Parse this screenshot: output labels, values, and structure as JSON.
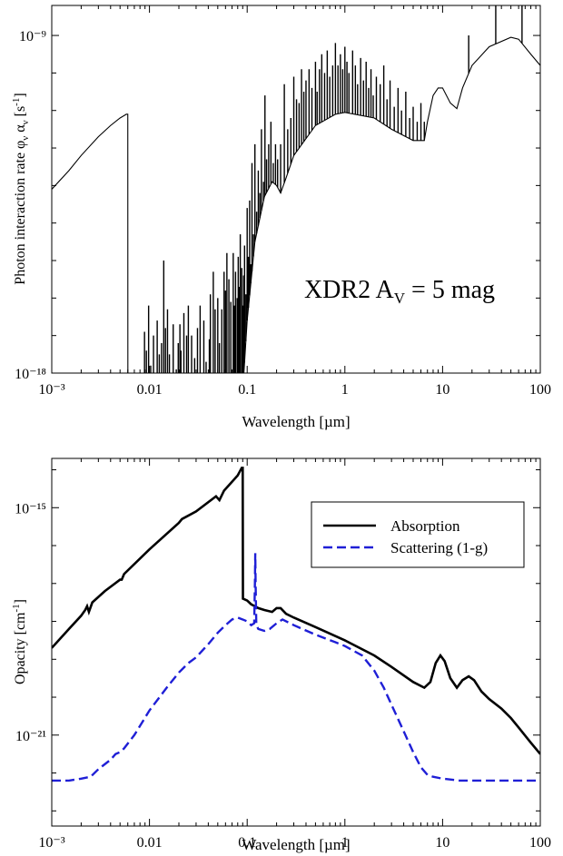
{
  "chart_data": [
    {
      "type": "line",
      "xscale": "log",
      "yscale": "log",
      "xlim": [
        0.001,
        100
      ],
      "ylim_exp": [
        -18,
        -8.2
      ],
      "xlabel": "Wavelength [µm]",
      "ylabel": "Photon interaction rate φν αν [s⁻¹]",
      "annotation": "XDR2 Aᵥ = 5 mag",
      "x_ticks": [
        "10⁻³",
        "0.01",
        "0.1",
        "1",
        "10",
        "100"
      ],
      "y_ticks": [
        "10⁻¹⁸",
        "10⁻⁹"
      ],
      "series": [
        {
          "color": "#000000",
          "continuum": [
            [
              0.001,
              -13.1
            ],
            [
              0.0015,
              -12.6
            ],
            [
              0.002,
              -12.2
            ],
            [
              0.003,
              -11.7
            ],
            [
              0.004,
              -11.4
            ],
            [
              0.005,
              -11.2
            ],
            [
              0.0058,
              -11.1
            ],
            [
              0.006,
              -11.1
            ],
            [
              0.00601,
              -18.5
            ],
            [
              0.09,
              -18.5
            ],
            [
              0.1,
              -16.6
            ],
            [
              0.12,
              -14.5
            ],
            [
              0.15,
              -13.3
            ],
            [
              0.18,
              -12.9
            ],
            [
              0.2,
              -13.0
            ],
            [
              0.22,
              -13.2
            ],
            [
              0.25,
              -12.8
            ],
            [
              0.3,
              -12.2
            ],
            [
              0.5,
              -11.4
            ],
            [
              0.8,
              -11.1
            ],
            [
              1,
              -11.05
            ],
            [
              2,
              -11.2
            ],
            [
              3,
              -11.5
            ],
            [
              5,
              -11.8
            ],
            [
              6.5,
              -11.8
            ],
            [
              7,
              -11.3
            ],
            [
              8,
              -10.6
            ],
            [
              9,
              -10.4
            ],
            [
              10,
              -10.4
            ],
            [
              12,
              -10.8
            ],
            [
              14,
              -10.95
            ],
            [
              16,
              -10.4
            ],
            [
              20,
              -9.8
            ],
            [
              30,
              -9.3
            ],
            [
              50,
              -9.05
            ],
            [
              60,
              -9.1
            ],
            [
              80,
              -9.5
            ],
            [
              100,
              -9.8
            ]
          ],
          "lines": [
            [
              0.0089,
              -16.9
            ],
            [
              0.0093,
              -17.4
            ],
            [
              0.0098,
              -16.2
            ],
            [
              0.0103,
              -17.8
            ],
            [
              0.011,
              -17.0
            ],
            [
              0.012,
              -16.6
            ],
            [
              0.0126,
              -17.5
            ],
            [
              0.0133,
              -17.2
            ],
            [
              0.014,
              -15.0
            ],
            [
              0.0146,
              -16.8
            ],
            [
              0.0153,
              -16.3
            ],
            [
              0.016,
              -17.5
            ],
            [
              0.0175,
              -16.7
            ],
            [
              0.0188,
              -17.9
            ],
            [
              0.0197,
              -17.2
            ],
            [
              0.0205,
              -16.7
            ],
            [
              0.021,
              -17.4
            ],
            [
              0.0225,
              -16.4
            ],
            [
              0.024,
              -17.0
            ],
            [
              0.025,
              -16.2
            ],
            [
              0.027,
              -17.0
            ],
            [
              0.029,
              -17.6
            ],
            [
              0.031,
              -16.8
            ],
            [
              0.033,
              -16.2
            ],
            [
              0.036,
              -16.6
            ],
            [
              0.038,
              -17.7
            ],
            [
              0.041,
              -17.1
            ],
            [
              0.042,
              -15.9
            ],
            [
              0.045,
              -15.3
            ],
            [
              0.047,
              -16.3
            ],
            [
              0.05,
              -16.0
            ],
            [
              0.052,
              -17.2
            ],
            [
              0.055,
              -16.3
            ],
            [
              0.058,
              -15.3
            ],
            [
              0.06,
              -15.8
            ],
            [
              0.062,
              -14.8
            ],
            [
              0.065,
              -15.5
            ],
            [
              0.068,
              -16.1
            ],
            [
              0.072,
              -14.8
            ],
            [
              0.074,
              -16.2
            ],
            [
              0.076,
              -15.3
            ],
            [
              0.079,
              -16.0
            ],
            [
              0.081,
              -14.9
            ],
            [
              0.083,
              -15.7
            ],
            [
              0.085,
              -14.3
            ],
            [
              0.088,
              -15.2
            ],
            [
              0.09,
              -16.2
            ],
            [
              0.092,
              -15.4
            ],
            [
              0.094,
              -14.6
            ],
            [
              0.097,
              -15.9
            ],
            [
              0.1,
              -13.6
            ],
            [
              0.103,
              -14.9
            ],
            [
              0.106,
              -13.4
            ],
            [
              0.109,
              -15.1
            ],
            [
              0.112,
              -12.4
            ],
            [
              0.116,
              -14.3
            ],
            [
              0.12,
              -11.9
            ],
            [
              0.125,
              -13.7
            ],
            [
              0.13,
              -12.6
            ],
            [
              0.135,
              -13.2
            ],
            [
              0.14,
              -11.5
            ],
            [
              0.147,
              -12.9
            ],
            [
              0.152,
              -10.6
            ],
            [
              0.158,
              -12.3
            ],
            [
              0.166,
              -11.9
            ],
            [
              0.175,
              -11.3
            ],
            [
              0.185,
              -12.4
            ],
            [
              0.195,
              -11.9
            ],
            [
              0.205,
              -12.3
            ],
            [
              0.22,
              -11.9
            ],
            [
              0.24,
              -10.3
            ],
            [
              0.26,
              -11.5
            ],
            [
              0.28,
              -11.2
            ],
            [
              0.3,
              -10.1
            ],
            [
              0.32,
              -10.7
            ],
            [
              0.34,
              -10.8
            ],
            [
              0.36,
              -9.9
            ],
            [
              0.38,
              -10.5
            ],
            [
              0.4,
              -10.2
            ],
            [
              0.43,
              -9.9
            ],
            [
              0.46,
              -10.4
            ],
            [
              0.5,
              -9.7
            ],
            [
              0.52,
              -10.5
            ],
            [
              0.55,
              -9.9
            ],
            [
              0.58,
              -9.5
            ],
            [
              0.62,
              -10.0
            ],
            [
              0.66,
              -9.4
            ],
            [
              0.7,
              -10.1
            ],
            [
              0.75,
              -9.8
            ],
            [
              0.8,
              -9.2
            ],
            [
              0.85,
              -9.8
            ],
            [
              0.9,
              -9.5
            ],
            [
              0.95,
              -9.9
            ],
            [
              1.0,
              -9.3
            ],
            [
              1.05,
              -9.7
            ],
            [
              1.1,
              -10.0
            ],
            [
              1.2,
              -9.4
            ],
            [
              1.28,
              -9.8
            ],
            [
              1.35,
              -10.3
            ],
            [
              1.45,
              -9.6
            ],
            [
              1.55,
              -10.2
            ],
            [
              1.65,
              -9.7
            ],
            [
              1.75,
              -10.4
            ],
            [
              1.85,
              -9.9
            ],
            [
              1.95,
              -10.6
            ],
            [
              2.1,
              -10.1
            ],
            [
              2.3,
              -10.3
            ],
            [
              2.5,
              -9.8
            ],
            [
              2.7,
              -10.7
            ],
            [
              2.9,
              -10.2
            ],
            [
              3.2,
              -10.9
            ],
            [
              3.5,
              -10.4
            ],
            [
              3.8,
              -11.0
            ],
            [
              4.2,
              -10.5
            ],
            [
              4.6,
              -11.2
            ],
            [
              5.0,
              -10.9
            ],
            [
              5.5,
              -11.3
            ],
            [
              6.0,
              -10.8
            ],
            [
              6.5,
              -11.3
            ],
            [
              18.5,
              -9.0
            ],
            [
              35,
              -8.2
            ],
            [
              65,
              -8.2
            ]
          ]
        }
      ]
    },
    {
      "type": "line",
      "xscale": "log",
      "yscale": "log",
      "xlim": [
        0.001,
        100
      ],
      "ylim_exp": [
        -23.4,
        -13.7
      ],
      "xlabel": "Wavelength [µm]",
      "ylabel": "Opacity [cm⁻¹]",
      "legend_position": "upper right",
      "x_ticks": [
        "10⁻³",
        "0.01",
        "0.1",
        "1",
        "10",
        "100"
      ],
      "y_ticks": [
        "10⁻¹⁵",
        "10⁻²¹"
      ],
      "series": [
        {
          "name": "Absorption",
          "color": "#000000",
          "dash": "solid",
          "points": [
            [
              0.001,
              -18.7
            ],
            [
              0.0015,
              -18.2
            ],
            [
              0.002,
              -17.85
            ],
            [
              0.0022,
              -17.7
            ],
            [
              0.0023,
              -17.6
            ],
            [
              0.0024,
              -17.75
            ],
            [
              0.0026,
              -17.5
            ],
            [
              0.0035,
              -17.2
            ],
            [
              0.005,
              -16.9
            ],
            [
              0.0052,
              -16.9
            ],
            [
              0.0055,
              -16.75
            ],
            [
              0.01,
              -16.1
            ],
            [
              0.02,
              -15.4
            ],
            [
              0.0215,
              -15.3
            ],
            [
              0.03,
              -15.1
            ],
            [
              0.048,
              -14.7
            ],
            [
              0.052,
              -14.8
            ],
            [
              0.058,
              -14.55
            ],
            [
              0.08,
              -14.15
            ],
            [
              0.088,
              -13.95
            ],
            [
              0.09,
              -13.95
            ],
            [
              0.0905,
              -17.4
            ],
            [
              0.1,
              -17.45
            ],
            [
              0.11,
              -17.55
            ],
            [
              0.12,
              -17.6
            ],
            [
              0.13,
              -17.65
            ],
            [
              0.15,
              -17.7
            ],
            [
              0.18,
              -17.75
            ],
            [
              0.2,
              -17.65
            ],
            [
              0.22,
              -17.65
            ],
            [
              0.25,
              -17.8
            ],
            [
              0.3,
              -17.9
            ],
            [
              0.5,
              -18.15
            ],
            [
              1,
              -18.5
            ],
            [
              2,
              -18.9
            ],
            [
              3,
              -19.2
            ],
            [
              5,
              -19.6
            ],
            [
              6.5,
              -19.75
            ],
            [
              7.5,
              -19.6
            ],
            [
              8.5,
              -19.1
            ],
            [
              9.5,
              -18.9
            ],
            [
              10.5,
              -19.05
            ],
            [
              12,
              -19.5
            ],
            [
              14,
              -19.75
            ],
            [
              16,
              -19.55
            ],
            [
              18.5,
              -19.45
            ],
            [
              21,
              -19.55
            ],
            [
              25,
              -19.85
            ],
            [
              30,
              -20.05
            ],
            [
              40,
              -20.3
            ],
            [
              50,
              -20.55
            ],
            [
              60,
              -20.8
            ],
            [
              80,
              -21.2
            ],
            [
              100,
              -21.5
            ]
          ]
        },
        {
          "name": "Scattering (1-g)",
          "color": "#1f1fd6",
          "dash": "dashed",
          "points": [
            [
              0.001,
              -22.2
            ],
            [
              0.0015,
              -22.2
            ],
            [
              0.002,
              -22.15
            ],
            [
              0.0025,
              -22.1
            ],
            [
              0.003,
              -21.9
            ],
            [
              0.004,
              -21.65
            ],
            [
              0.0045,
              -21.5
            ],
            [
              0.005,
              -21.45
            ],
            [
              0.0055,
              -21.35
            ],
            [
              0.007,
              -21.0
            ],
            [
              0.01,
              -20.35
            ],
            [
              0.015,
              -19.75
            ],
            [
              0.02,
              -19.35
            ],
            [
              0.025,
              -19.1
            ],
            [
              0.03,
              -18.95
            ],
            [
              0.04,
              -18.6
            ],
            [
              0.05,
              -18.3
            ],
            [
              0.06,
              -18.1
            ],
            [
              0.07,
              -17.95
            ],
            [
              0.08,
              -17.9
            ],
            [
              0.09,
              -17.95
            ],
            [
              0.1,
              -18.0
            ],
            [
              0.11,
              -18.1
            ],
            [
              0.118,
              -18.05
            ],
            [
              0.12,
              -17.0
            ],
            [
              0.121,
              -16.2
            ],
            [
              0.122,
              -17.0
            ],
            [
              0.124,
              -18.1
            ],
            [
              0.13,
              -18.2
            ],
            [
              0.15,
              -18.25
            ],
            [
              0.17,
              -18.2
            ],
            [
              0.2,
              -18.05
            ],
            [
              0.23,
              -17.95
            ],
            [
              0.3,
              -18.1
            ],
            [
              0.5,
              -18.35
            ],
            [
              0.8,
              -18.55
            ],
            [
              1,
              -18.65
            ],
            [
              1.5,
              -18.9
            ],
            [
              2,
              -19.3
            ],
            [
              2.5,
              -19.75
            ],
            [
              3,
              -20.2
            ],
            [
              4,
              -20.9
            ],
            [
              5,
              -21.45
            ],
            [
              6,
              -21.85
            ],
            [
              7,
              -22.05
            ],
            [
              8,
              -22.1
            ],
            [
              10,
              -22.15
            ],
            [
              15,
              -22.2
            ],
            [
              30,
              -22.2
            ],
            [
              100,
              -22.2
            ]
          ]
        }
      ]
    }
  ]
}
